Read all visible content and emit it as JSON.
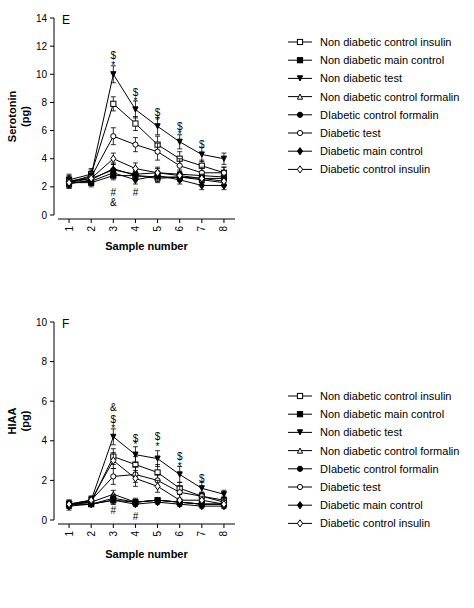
{
  "chart_data": [
    {
      "type": "line",
      "title": "E",
      "y_label": "Serotonin (pg)",
      "x_label": "Sample number",
      "x": [
        1,
        2,
        3,
        4,
        5,
        6,
        7,
        8
      ],
      "xlim": [
        0.5,
        8.5
      ],
      "xticks": [
        1,
        2,
        3,
        4,
        5,
        6,
        7,
        8
      ],
      "ylim": [
        0,
        14
      ],
      "yticks": [
        0,
        2,
        4,
        6,
        8,
        10,
        12,
        14
      ],
      "grid": false,
      "legend": "right",
      "series": [
        {
          "name": "Non diabetic control insulin",
          "color": "#000000",
          "marker": "square-open",
          "line_style": "solid",
          "values": [
            2.5,
            2.9,
            7.9,
            6.5,
            5.0,
            4.0,
            3.5,
            3.0
          ],
          "errors": [
            0.4,
            0.4,
            0.5,
            0.5,
            0.6,
            0.5,
            0.4,
            0.4
          ]
        },
        {
          "name": "Non diabetic main control",
          "color": "#000000",
          "marker": "square",
          "line_style": "solid",
          "values": [
            2.3,
            2.3,
            2.8,
            2.8,
            2.7,
            2.7,
            2.6,
            2.6
          ],
          "errors": [
            0.3,
            0.3,
            0.3,
            0.3,
            0.3,
            0.3,
            0.3,
            0.3
          ]
        },
        {
          "name": "Non diabetic test",
          "color": "#000000",
          "marker": "triangle-down",
          "line_style": "solid",
          "values": [
            2.3,
            2.8,
            10.0,
            7.5,
            6.3,
            5.2,
            4.3,
            4.0
          ],
          "errors": [
            0.4,
            0.4,
            0.6,
            0.6,
            0.6,
            0.5,
            0.5,
            0.4
          ]
        },
        {
          "name": "Non diabetic control formalin",
          "color": "#000000",
          "marker": "triangle-up-open",
          "line_style": "solid",
          "values": [
            2.2,
            2.5,
            3.3,
            2.8,
            2.6,
            2.7,
            2.5,
            2.3
          ],
          "errors": [
            0.3,
            0.3,
            0.4,
            0.3,
            0.3,
            0.3,
            0.3,
            0.3
          ]
        },
        {
          "name": "DIabetic control formalin",
          "color": "#000000",
          "marker": "circle",
          "line_style": "solid",
          "values": [
            2.4,
            2.6,
            3.2,
            2.9,
            3.0,
            2.9,
            2.8,
            2.7
          ],
          "errors": [
            0.3,
            0.3,
            0.4,
            0.3,
            0.3,
            0.3,
            0.3,
            0.3
          ]
        },
        {
          "name": "Diabetic test",
          "color": "#000000",
          "marker": "circle-open",
          "line_style": "solid",
          "values": [
            2.4,
            2.7,
            5.6,
            5.0,
            4.5,
            3.5,
            3.0,
            3.0
          ],
          "errors": [
            0.4,
            0.4,
            0.6,
            0.5,
            0.6,
            0.5,
            0.4,
            0.4
          ]
        },
        {
          "name": "Diabetic main control",
          "color": "#000000",
          "marker": "diamond",
          "line_style": "solid",
          "values": [
            2.3,
            2.4,
            3.0,
            2.5,
            2.8,
            2.5,
            2.1,
            2.1
          ],
          "errors": [
            0.3,
            0.3,
            0.3,
            0.3,
            0.3,
            0.3,
            0.3,
            0.3
          ]
        },
        {
          "name": "Diabetic control insulin",
          "color": "#000000",
          "marker": "diamond-open",
          "line_style": "solid",
          "values": [
            2.3,
            2.6,
            4.0,
            3.3,
            3.0,
            2.8,
            2.6,
            2.4
          ],
          "errors": [
            0.3,
            0.3,
            0.4,
            0.4,
            0.4,
            0.3,
            0.3,
            0.3
          ]
        }
      ],
      "annotations": [
        {
          "text": "$",
          "x": 3,
          "y": 11.3
        },
        {
          "text": "*",
          "x": 3,
          "y": 10.6
        },
        {
          "text": "$",
          "x": 4,
          "y": 8.7
        },
        {
          "text": "*",
          "x": 4,
          "y": 8.1
        },
        {
          "text": "$",
          "x": 5,
          "y": 7.3
        },
        {
          "text": "*",
          "x": 5,
          "y": 6.7
        },
        {
          "text": "$",
          "x": 6,
          "y": 6.3
        },
        {
          "text": "*",
          "x": 6,
          "y": 5.7
        },
        {
          "text": "$",
          "x": 7,
          "y": 5.0
        },
        {
          "text": "#",
          "x": 3,
          "y": 1.6
        },
        {
          "text": "&",
          "x": 3,
          "y": 0.9
        },
        {
          "text": "#",
          "x": 4,
          "y": 1.6
        }
      ]
    },
    {
      "type": "line",
      "title": "F",
      "y_label": "HIAA (pg)",
      "x_label": "Sample number",
      "x": [
        1,
        2,
        3,
        4,
        5,
        6,
        7,
        8
      ],
      "xlim": [
        0.5,
        8.5
      ],
      "xticks": [
        1,
        2,
        3,
        4,
        5,
        6,
        7,
        8
      ],
      "ylim": [
        0,
        10
      ],
      "yticks": [
        0,
        2,
        4,
        6,
        8,
        10
      ],
      "grid": false,
      "legend": "right",
      "series": [
        {
          "name": "Non diabetic control insulin",
          "color": "#000000",
          "marker": "square-open",
          "line_style": "solid",
          "values": [
            0.8,
            0.9,
            3.2,
            2.8,
            2.4,
            1.6,
            1.2,
            1.0
          ],
          "errors": [
            0.2,
            0.2,
            0.4,
            0.4,
            0.4,
            0.3,
            0.2,
            0.2
          ]
        },
        {
          "name": "Non diabetic main control",
          "color": "#000000",
          "marker": "square",
          "line_style": "solid",
          "values": [
            0.8,
            0.8,
            1.0,
            0.9,
            1.0,
            0.9,
            0.8,
            0.8
          ],
          "errors": [
            0.1,
            0.1,
            0.2,
            0.1,
            0.1,
            0.1,
            0.1,
            0.1
          ]
        },
        {
          "name": "Non diabetic test",
          "color": "#000000",
          "marker": "triangle-down",
          "line_style": "solid",
          "values": [
            0.8,
            1.0,
            4.2,
            3.3,
            3.1,
            2.3,
            1.6,
            1.3
          ],
          "errors": [
            0.2,
            0.2,
            0.4,
            0.4,
            0.4,
            0.4,
            0.3,
            0.2
          ]
        },
        {
          "name": "Non diabetic control formalin",
          "color": "#000000",
          "marker": "triangle-up-open",
          "line_style": "solid",
          "values": [
            0.8,
            0.9,
            1.3,
            0.9,
            1.0,
            0.9,
            0.8,
            0.8
          ],
          "errors": [
            0.1,
            0.1,
            0.2,
            0.2,
            0.1,
            0.1,
            0.1,
            0.1
          ]
        },
        {
          "name": "DIabetic control formalin",
          "color": "#000000",
          "marker": "circle",
          "line_style": "solid",
          "values": [
            0.8,
            0.8,
            1.1,
            0.9,
            1.0,
            0.9,
            0.8,
            0.8
          ],
          "errors": [
            0.1,
            0.1,
            0.2,
            0.1,
            0.1,
            0.1,
            0.1,
            0.1
          ]
        },
        {
          "name": "Diabetic test",
          "color": "#000000",
          "marker": "circle-open",
          "line_style": "solid",
          "values": [
            0.7,
            1.0,
            2.2,
            2.3,
            2.0,
            1.4,
            1.2,
            0.9
          ],
          "errors": [
            0.2,
            0.2,
            0.4,
            0.4,
            0.3,
            0.3,
            0.2,
            0.2
          ]
        },
        {
          "name": "Diabetic main control",
          "color": "#000000",
          "marker": "diamond",
          "line_style": "solid",
          "values": [
            0.7,
            0.8,
            1.0,
            0.8,
            0.9,
            0.8,
            0.7,
            0.7
          ],
          "errors": [
            0.1,
            0.1,
            0.2,
            0.1,
            0.1,
            0.1,
            0.1,
            0.1
          ]
        },
        {
          "name": "Diabetic control insulin",
          "color": "#000000",
          "marker": "diamond-open",
          "line_style": "solid",
          "values": [
            0.8,
            1.0,
            3.0,
            2.1,
            1.7,
            1.0,
            1.0,
            0.8
          ],
          "errors": [
            0.2,
            0.2,
            0.4,
            0.4,
            0.3,
            0.3,
            0.2,
            0.2
          ]
        }
      ],
      "annotations": [
        {
          "text": "&",
          "x": 3,
          "y": 5.7
        },
        {
          "text": "$",
          "x": 3,
          "y": 5.1
        },
        {
          "text": "*",
          "x": 3,
          "y": 4.6
        },
        {
          "text": "$",
          "x": 4,
          "y": 4.1
        },
        {
          "text": "*",
          "x": 4,
          "y": 3.8
        },
        {
          "text": "$",
          "x": 5,
          "y": 4.2
        },
        {
          "text": "*",
          "x": 5,
          "y": 3.7
        },
        {
          "text": "$",
          "x": 6,
          "y": 3.2
        },
        {
          "text": "*",
          "x": 6,
          "y": 2.7
        },
        {
          "text": "$",
          "x": 7,
          "y": 2.1
        },
        {
          "text": "#",
          "x": 3,
          "y": 0.5
        },
        {
          "text": "#",
          "x": 4,
          "y": 0.2
        }
      ]
    }
  ]
}
